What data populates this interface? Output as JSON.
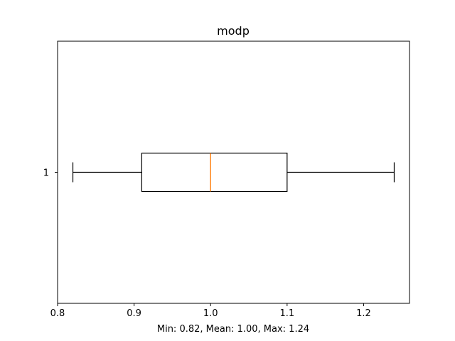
{
  "chart_data": {
    "type": "boxplot",
    "orientation": "horizontal",
    "title": "modp",
    "xlabel": "Min: 0.82, Mean: 1.00, Max: 1.24",
    "ylabel": "",
    "categories": [
      "1"
    ],
    "boxes": [
      {
        "name": "1",
        "whisker_low": 0.82,
        "q1": 0.91,
        "median": 1.0,
        "q3": 1.1,
        "whisker_high": 1.24
      }
    ],
    "xlim": [
      0.8,
      1.26
    ],
    "x_ticks": [
      0.8,
      0.9,
      1.0,
      1.1,
      1.2
    ],
    "x_tick_labels": [
      "0.8",
      "0.9",
      "1.0",
      "1.1",
      "1.2"
    ],
    "y_tick_labels": [
      "1"
    ],
    "grid": false,
    "colors": {
      "box": "#000000",
      "median": "#ff7f0e",
      "whisker": "#000000",
      "axes": "#000000",
      "background": "#ffffff"
    }
  }
}
